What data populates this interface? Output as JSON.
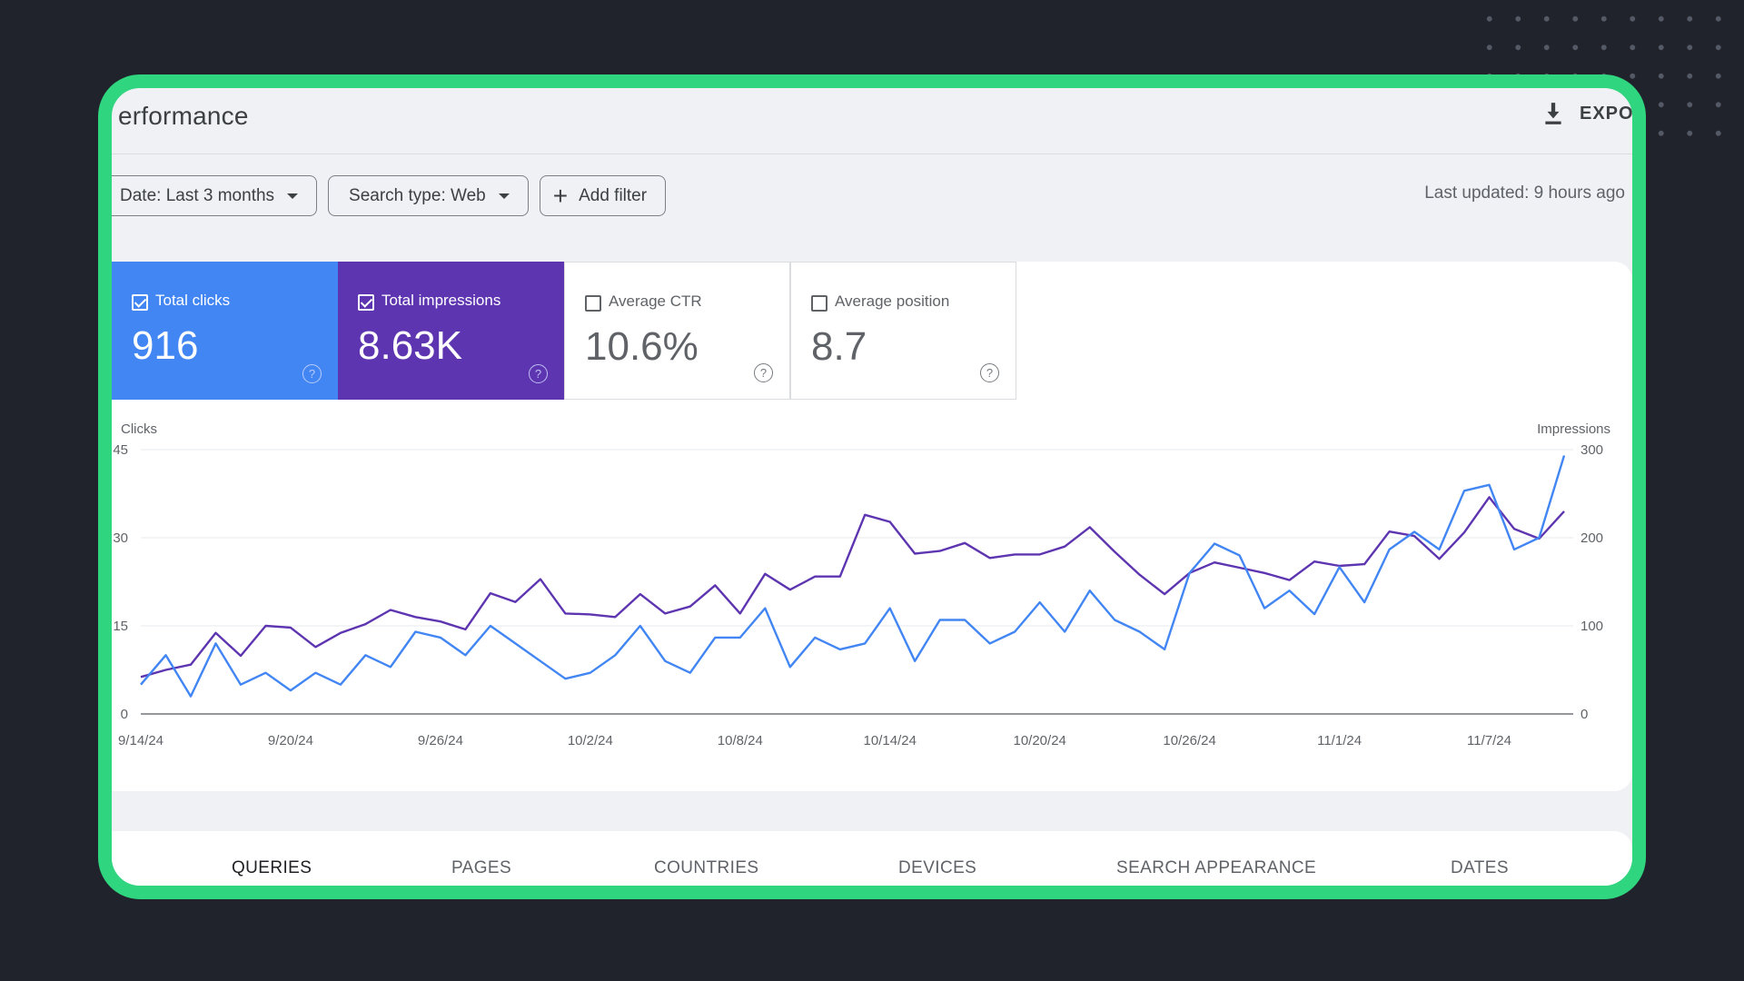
{
  "header": {
    "title": "erformance",
    "export_label": "EXPO"
  },
  "filters": {
    "date": "Date: Last 3 months",
    "search_type": "Search type: Web",
    "add_filter": "Add filter",
    "last_updated": "Last updated: 9 hours ago"
  },
  "metrics": [
    {
      "label": "Total clicks",
      "value": "916",
      "checked": true
    },
    {
      "label": "Total impressions",
      "value": "8.63K",
      "checked": true
    },
    {
      "label": "Average CTR",
      "value": "10.6%",
      "checked": false
    },
    {
      "label": "Average position",
      "value": "8.7",
      "checked": false
    }
  ],
  "colors": {
    "clicks": "#4286f4",
    "impressions": "#5e35b1",
    "frame": "#2fd57f",
    "background": "#20232b"
  },
  "icons": {
    "export": "download-icon",
    "help": "help-circle-icon",
    "caret": "caret-down-icon",
    "add": "plus-icon"
  },
  "chart_data": {
    "type": "line",
    "ylabel_left": "Clicks",
    "ylabel_right": "Impressions",
    "ylim_left": [
      0,
      45
    ],
    "ylim_right": [
      0,
      300
    ],
    "yticks_left": [
      "45",
      "30",
      "15",
      "0"
    ],
    "yticks_right": [
      "300",
      "200",
      "100",
      "0"
    ],
    "xticks": [
      "9/14/24",
      "9/20/24",
      "9/26/24",
      "10/2/24",
      "10/8/24",
      "10/14/24",
      "10/20/24",
      "10/26/24",
      "11/1/24",
      "11/7/24"
    ],
    "grid": true,
    "x": [
      "9/14/24",
      "9/15/24",
      "9/16/24",
      "9/17/24",
      "9/18/24",
      "9/19/24",
      "9/20/24",
      "9/21/24",
      "9/22/24",
      "9/23/24",
      "9/24/24",
      "9/25/24",
      "9/26/24",
      "9/27/24",
      "9/28/24",
      "9/29/24",
      "9/30/24",
      "10/1/24",
      "10/2/24",
      "10/3/24",
      "10/4/24",
      "10/5/24",
      "10/6/24",
      "10/7/24",
      "10/8/24",
      "10/9/24",
      "10/10/24",
      "10/11/24",
      "10/12/24",
      "10/13/24",
      "10/14/24",
      "10/15/24",
      "10/16/24",
      "10/17/24",
      "10/18/24",
      "10/19/24",
      "10/20/24",
      "10/21/24",
      "10/22/24",
      "10/23/24",
      "10/24/24",
      "10/25/24",
      "10/26/24",
      "10/27/24",
      "10/28/24",
      "10/29/24",
      "10/30/24",
      "10/31/24",
      "11/1/24",
      "11/2/24",
      "11/3/24",
      "11/4/24",
      "11/5/24",
      "11/6/24",
      "11/7/24",
      "11/8/24",
      "11/9/24",
      "11/10/24"
    ],
    "series": [
      {
        "name": "Clicks",
        "axis": "left",
        "values": [
          5,
          10,
          3,
          12,
          5,
          7,
          4,
          7,
          5,
          10,
          8,
          14,
          13,
          10,
          15,
          12,
          9,
          6,
          7,
          10,
          15,
          9,
          7,
          13,
          13,
          18,
          8,
          13,
          11,
          12,
          18,
          9,
          16,
          16,
          12,
          14,
          19,
          14,
          21,
          16,
          14,
          11,
          24,
          29,
          27,
          18,
          21,
          17,
          25,
          19,
          28,
          31,
          28,
          38,
          39,
          28,
          30,
          44
        ]
      },
      {
        "name": "Impressions",
        "axis": "right",
        "values": [
          42,
          50,
          56,
          92,
          66,
          100,
          98,
          76,
          92,
          102,
          118,
          110,
          105,
          96,
          137,
          127,
          153,
          114,
          113,
          110,
          136,
          114,
          122,
          146,
          114,
          159,
          141,
          156,
          156,
          226,
          218,
          182,
          185,
          194,
          177,
          181,
          181,
          190,
          212,
          184,
          158,
          136,
          160,
          172,
          166,
          160,
          152,
          173,
          168,
          170,
          207,
          202,
          176,
          206,
          246,
          210,
          199,
          230
        ]
      }
    ]
  },
  "tabs": [
    "QUERIES",
    "PAGES",
    "COUNTRIES",
    "DEVICES",
    "SEARCH APPEARANCE",
    "DATES"
  ]
}
